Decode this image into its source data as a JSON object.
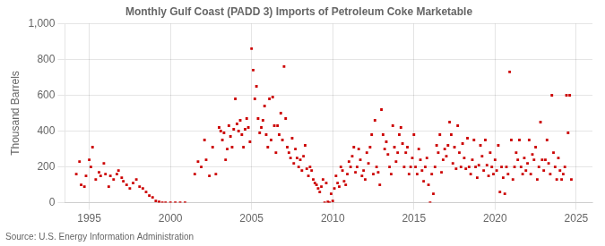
{
  "chart_data": {
    "type": "scatter",
    "title": "Monthly Gulf Coast (PADD 3) Imports of Petroleum Coke Marketable",
    "ylabel": "Thousand Barrels",
    "annotations": [
      "Source: U.S. Energy Information Administration"
    ],
    "color": "#cc0000",
    "marker": "square",
    "grid": true,
    "xlim": [
      1993.5,
      2026.0
    ],
    "ylim": [
      0,
      1000
    ],
    "xticks": [
      1995,
      2000,
      2005,
      2010,
      2015,
      2020,
      2025
    ],
    "yticks": [
      0,
      200,
      400,
      600,
      800,
      {
        "value": 1000,
        "label": "1,000"
      }
    ],
    "x": [
      1994.2,
      1994.4,
      1994.5,
      1994.7,
      1994.8,
      1995.0,
      1995.1,
      1995.2,
      1995.4,
      1995.6,
      1995.7,
      1995.9,
      1996.0,
      1996.2,
      1996.3,
      1996.5,
      1996.7,
      1996.8,
      1997.0,
      1997.1,
      1997.3,
      1997.5,
      1997.7,
      1997.9,
      1998.1,
      1998.3,
      1998.5,
      1998.7,
      1998.9,
      1999.1,
      1999.3,
      1999.5,
      1999.7,
      2000.0,
      2000.3,
      2000.6,
      2000.9,
      2001.5,
      2001.7,
      2001.9,
      2002.1,
      2002.2,
      2002.4,
      2002.6,
      2002.8,
      2003.0,
      2003.1,
      2003.2,
      2003.3,
      2003.4,
      2003.5,
      2003.6,
      2003.7,
      2003.8,
      2003.9,
      2004.0,
      2004.1,
      2004.2,
      2004.3,
      2004.4,
      2004.5,
      2004.6,
      2004.7,
      2004.8,
      2004.9,
      2005.0,
      2005.1,
      2005.2,
      2005.3,
      2005.4,
      2005.5,
      2005.6,
      2005.7,
      2005.8,
      2005.9,
      2006.0,
      2006.1,
      2006.2,
      2006.3,
      2006.4,
      2006.5,
      2006.6,
      2006.7,
      2006.8,
      2006.9,
      2007.0,
      2007.1,
      2007.2,
      2007.3,
      2007.4,
      2007.5,
      2007.6,
      2007.7,
      2007.8,
      2007.9,
      2008.0,
      2008.1,
      2008.2,
      2008.3,
      2008.4,
      2008.5,
      2008.6,
      2008.7,
      2008.8,
      2008.9,
      2009.0,
      2009.1,
      2009.2,
      2009.3,
      2009.4,
      2009.5,
      2009.6,
      2009.7,
      2009.8,
      2009.9,
      2010.0,
      2010.1,
      2010.2,
      2010.3,
      2010.4,
      2010.5,
      2010.6,
      2010.7,
      2010.8,
      2010.9,
      2011.0,
      2011.1,
      2011.2,
      2011.3,
      2011.4,
      2011.5,
      2011.6,
      2011.7,
      2011.8,
      2011.9,
      2012.0,
      2012.1,
      2012.2,
      2012.3,
      2012.4,
      2012.5,
      2012.6,
      2012.7,
      2012.8,
      2012.9,
      2013.0,
      2013.1,
      2013.2,
      2013.3,
      2013.4,
      2013.5,
      2013.6,
      2013.7,
      2013.8,
      2013.9,
      2014.0,
      2014.1,
      2014.2,
      2014.3,
      2014.4,
      2014.5,
      2014.6,
      2014.7,
      2014.8,
      2014.9,
      2015.0,
      2015.1,
      2015.2,
      2015.3,
      2015.4,
      2015.5,
      2015.6,
      2015.7,
      2015.8,
      2015.9,
      2016.0,
      2016.1,
      2016.2,
      2016.3,
      2016.4,
      2016.5,
      2016.6,
      2016.7,
      2016.8,
      2016.9,
      2017.0,
      2017.1,
      2017.2,
      2017.3,
      2017.4,
      2017.5,
      2017.6,
      2017.7,
      2017.8,
      2017.9,
      2018.0,
      2018.1,
      2018.2,
      2018.3,
      2018.4,
      2018.5,
      2018.6,
      2018.7,
      2018.8,
      2018.9,
      2019.0,
      2019.1,
      2019.2,
      2019.3,
      2019.4,
      2019.5,
      2019.6,
      2019.7,
      2019.8,
      2019.9,
      2020.0,
      2020.1,
      2020.2,
      2020.3,
      2020.4,
      2020.5,
      2020.6,
      2020.7,
      2020.8,
      2020.9,
      2021.0,
      2021.1,
      2021.2,
      2021.3,
      2021.4,
      2021.5,
      2021.6,
      2021.7,
      2021.8,
      2021.9,
      2022.0,
      2022.1,
      2022.2,
      2022.3,
      2022.4,
      2022.5,
      2022.6,
      2022.7,
      2022.8,
      2022.9,
      2023.0,
      2023.1,
      2023.2,
      2023.3,
      2023.4,
      2023.5,
      2023.6,
      2023.7,
      2023.8,
      2023.9,
      2024.0,
      2024.1,
      2024.2,
      2024.3,
      2024.4,
      2024.5,
      2024.6,
      2024.7
    ],
    "values": [
      160,
      230,
      100,
      90,
      150,
      240,
      200,
      310,
      130,
      170,
      150,
      220,
      160,
      90,
      150,
      130,
      160,
      180,
      140,
      120,
      100,
      80,
      110,
      130,
      90,
      80,
      60,
      40,
      30,
      10,
      5,
      0,
      0,
      0,
      0,
      0,
      0,
      160,
      230,
      200,
      350,
      240,
      150,
      310,
      160,
      420,
      400,
      350,
      390,
      240,
      300,
      430,
      370,
      310,
      410,
      580,
      440,
      400,
      460,
      380,
      310,
      410,
      470,
      420,
      340,
      860,
      740,
      580,
      650,
      470,
      390,
      420,
      460,
      540,
      380,
      310,
      580,
      350,
      590,
      430,
      280,
      430,
      380,
      500,
      350,
      760,
      470,
      310,
      280,
      250,
      360,
      220,
      300,
      250,
      200,
      240,
      180,
      260,
      320,
      190,
      150,
      200,
      180,
      130,
      110,
      100,
      80,
      60,
      90,
      130,
      0,
      110,
      5,
      0,
      50,
      10,
      80,
      150,
      110,
      90,
      200,
      180,
      120,
      100,
      160,
      230,
      200,
      260,
      310,
      170,
      200,
      300,
      240,
      150,
      180,
      130,
      280,
      220,
      310,
      380,
      160,
      460,
      200,
      170,
      100,
      520,
      380,
      300,
      340,
      270,
      200,
      160,
      430,
      310,
      230,
      280,
      380,
      420,
      330,
      200,
      280,
      310,
      160,
      200,
      250,
      380,
      200,
      160,
      300,
      240,
      180,
      120,
      200,
      250,
      100,
      0,
      160,
      50,
      200,
      320,
      280,
      380,
      170,
      240,
      300,
      260,
      320,
      450,
      380,
      220,
      310,
      190,
      430,
      280,
      200,
      330,
      250,
      190,
      360,
      200,
      160,
      240,
      350,
      200,
      140,
      210,
      320,
      260,
      180,
      350,
      210,
      150,
      280,
      200,
      160,
      240,
      180,
      320,
      60,
      200,
      140,
      50,
      200,
      160,
      730,
      350,
      130,
      200,
      280,
      240,
      350,
      200,
      160,
      250,
      180,
      220,
      350,
      160,
      270,
      240,
      310,
      130,
      200,
      450,
      240,
      180,
      240,
      350,
      220,
      160,
      600,
      280,
      200,
      130,
      250,
      180,
      130,
      160,
      200,
      600,
      390,
      600,
      130
    ]
  }
}
